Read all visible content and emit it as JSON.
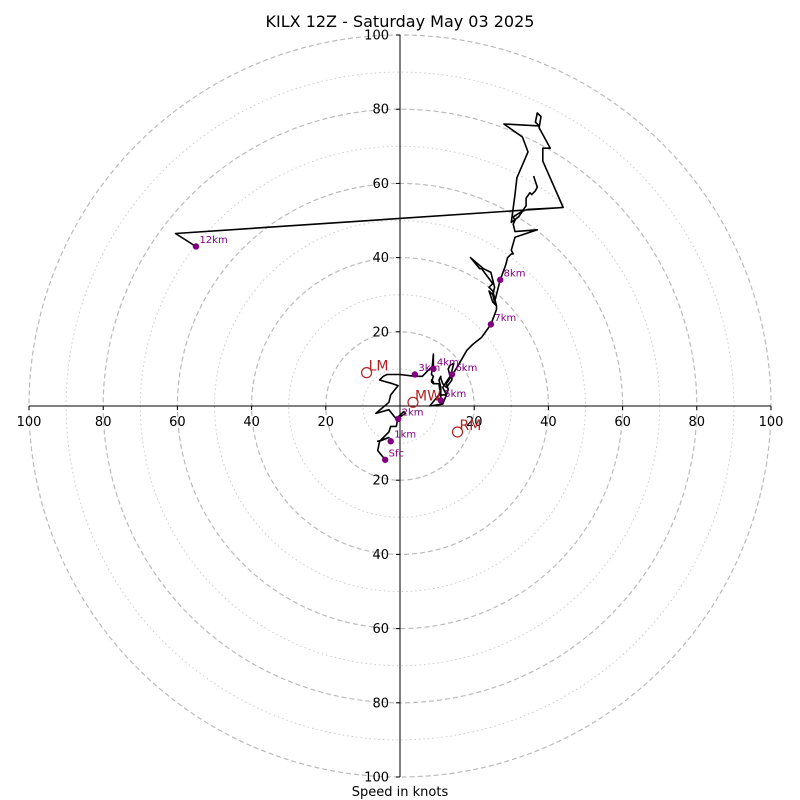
{
  "chart_data": {
    "type": "line",
    "title": "KILX 12Z - Saturday May 03 2025",
    "xlabel": "Speed in knots",
    "ylabel": "",
    "xlim": [
      -100,
      100
    ],
    "ylim": [
      -100,
      100
    ],
    "rings_major": [
      20,
      40,
      60,
      80,
      100
    ],
    "rings_minor": [
      10,
      30,
      50,
      70,
      90
    ],
    "tick_labels_x": [
      "100",
      "80",
      "60",
      "40",
      "20",
      "20",
      "40",
      "60",
      "80",
      "100"
    ],
    "tick_labels_y": [
      "100",
      "80",
      "60",
      "40",
      "20",
      "20",
      "40",
      "60",
      "80",
      "100"
    ],
    "tick_values": [
      -100,
      -80,
      -60,
      -40,
      -20,
      20,
      40,
      60,
      80,
      100
    ],
    "line_color": "#000000",
    "height_marker_color": "#800080",
    "motion_marker_color": "#b22222",
    "series": [
      {
        "points": [
          [
            -4,
            -14.5
          ],
          [
            -6,
            -12
          ],
          [
            -5.5,
            -9.5
          ],
          [
            -6,
            -9.5
          ],
          [
            -3,
            -8.5
          ],
          [
            -5.5,
            -9.5
          ],
          [
            -3,
            -7
          ],
          [
            -2.5,
            -5.5
          ],
          [
            -1,
            -5.5
          ],
          [
            -0.5,
            -3
          ],
          [
            1,
            -1.5
          ],
          [
            1.5,
            -2
          ],
          [
            -1,
            -3.5
          ],
          [
            -3,
            -1
          ],
          [
            -6.5,
            -2
          ],
          [
            -3,
            1
          ],
          [
            -2.5,
            3
          ],
          [
            -0.5,
            5.5
          ],
          [
            -2,
            6
          ],
          [
            -5.5,
            7
          ],
          [
            -4.5,
            8
          ],
          [
            -3.5,
            8.5
          ],
          [
            0,
            8.5
          ],
          [
            4,
            8
          ],
          [
            6,
            8
          ],
          [
            7.5,
            9.5
          ],
          [
            9,
            11
          ],
          [
            9,
            14
          ],
          [
            8.5,
            8.5
          ],
          [
            9,
            8
          ],
          [
            8.5,
            6.5
          ],
          [
            9,
            6
          ],
          [
            9,
            6.5
          ],
          [
            8.5,
            7
          ],
          [
            9,
            6
          ],
          [
            10.5,
            6
          ],
          [
            11,
            2
          ],
          [
            11,
            5
          ],
          [
            10.5,
            7
          ],
          [
            11,
            8
          ],
          [
            11,
            7.5
          ],
          [
            11.5,
            6
          ],
          [
            12.5,
            5
          ],
          [
            14,
            7
          ],
          [
            14,
            9.5
          ],
          [
            14.5,
            11.5
          ],
          [
            13.5,
            11
          ],
          [
            13,
            10
          ],
          [
            13.5,
            8
          ],
          [
            11.5,
            5
          ],
          [
            12.5,
            3
          ],
          [
            10.5,
            3
          ],
          [
            8,
            0
          ],
          [
            11.5,
            0.5
          ],
          [
            12.5,
            3
          ],
          [
            13,
            4.5
          ],
          [
            12.5,
            6
          ],
          [
            14.5,
            9
          ],
          [
            16,
            11.5
          ],
          [
            18,
            15
          ],
          [
            19.5,
            16.5
          ],
          [
            22,
            18.5
          ],
          [
            24.5,
            22
          ],
          [
            26,
            26
          ],
          [
            26,
            27
          ],
          [
            25,
            30
          ],
          [
            24,
            31
          ],
          [
            25,
            28
          ],
          [
            26,
            27
          ],
          [
            25,
            31
          ],
          [
            24,
            32
          ],
          [
            25,
            33
          ],
          [
            22,
            37
          ],
          [
            21.5,
            37
          ],
          [
            19,
            40
          ],
          [
            22.5,
            37
          ],
          [
            24.5,
            36
          ],
          [
            25.5,
            32
          ],
          [
            25,
            30
          ],
          [
            25.5,
            28
          ],
          [
            27,
            34
          ],
          [
            28.5,
            38
          ],
          [
            29,
            40
          ],
          [
            30,
            41
          ],
          [
            30.5,
            41
          ],
          [
            30,
            42
          ],
          [
            31,
            45.5
          ],
          [
            37,
            47.5
          ],
          [
            31,
            47
          ],
          [
            30.5,
            49
          ],
          [
            31,
            50
          ],
          [
            30.5,
            51
          ],
          [
            33,
            52.5
          ],
          [
            34.5,
            53
          ],
          [
            44,
            53.5
          ],
          [
            -60.5,
            46.5
          ],
          [
            -55,
            43
          ]
        ]
      },
      {
        "points": [
          [
            36,
            62
          ],
          [
            36.5,
            60.5
          ],
          [
            37,
            59
          ],
          [
            36.5,
            58
          ],
          [
            36,
            57.5
          ],
          [
            35.5,
            57
          ],
          [
            35,
            57.5
          ],
          [
            34,
            56
          ],
          [
            34,
            54
          ],
          [
            32,
            51
          ],
          [
            30,
            49.5
          ],
          [
            31,
            57
          ],
          [
            31.5,
            61.5
          ],
          [
            34.5,
            68.5
          ],
          [
            33,
            72.5
          ],
          [
            28,
            76
          ],
          [
            37.5,
            75.5
          ],
          [
            36.5,
            76.5
          ],
          [
            37,
            79
          ],
          [
            38,
            78
          ],
          [
            37.5,
            75
          ],
          [
            40.5,
            69.5
          ],
          [
            38.5,
            69.5
          ],
          [
            38.5,
            66
          ],
          [
            44,
            53.5
          ]
        ]
      }
    ],
    "height_markers": [
      {
        "label": "Sfc",
        "x": -4,
        "y": -14.5
      },
      {
        "label": "1km",
        "x": -2.5,
        "y": -9.5
      },
      {
        "label": "2km",
        "x": -0.5,
        "y": -3.5
      },
      {
        "label": "3km",
        "x": 4,
        "y": 8.5
      },
      {
        "label": "4km",
        "x": 9,
        "y": 10
      },
      {
        "label": "5km",
        "x": 11,
        "y": 1.5
      },
      {
        "label": "6km",
        "x": 14,
        "y": 8.5
      },
      {
        "label": "7km",
        "x": 24.5,
        "y": 22
      },
      {
        "label": "8km",
        "x": 27,
        "y": 34
      },
      {
        "label": "12km",
        "x": -55,
        "y": 43
      }
    ],
    "motion_markers": [
      {
        "label": "LM",
        "x": -9,
        "y": 9
      },
      {
        "label": "RM",
        "x": 15.5,
        "y": -7
      },
      {
        "label": "MW",
        "x": 3.5,
        "y": 1
      }
    ]
  }
}
